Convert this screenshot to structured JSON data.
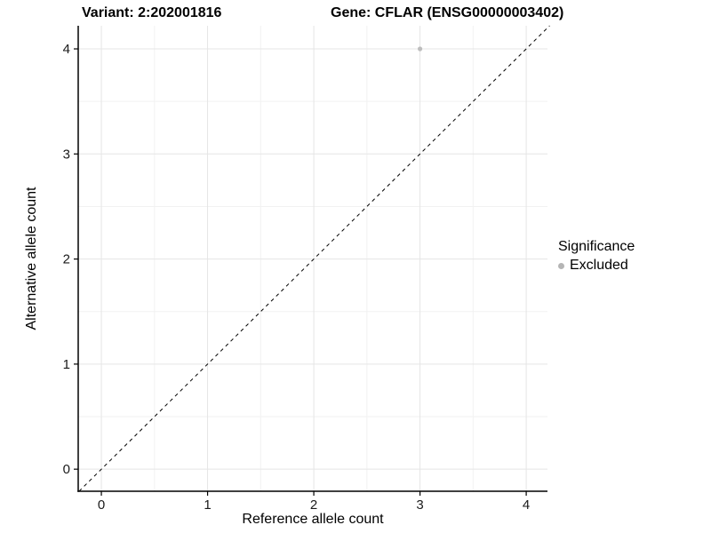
{
  "titles": {
    "variant": "Variant: 2:202001816",
    "gene": "Gene: CFLAR (ENSG00000003402)"
  },
  "chart_data": {
    "type": "scatter",
    "title": "Variant: 2:202001816   Gene: CFLAR (ENSG00000003402)",
    "xlabel": "Reference allele count",
    "ylabel": "Alternative allele count",
    "xlim": [
      -0.218,
      4.2
    ],
    "ylim": [
      -0.21,
      4.22
    ],
    "x_ticks": [
      0,
      1,
      2,
      3,
      4
    ],
    "y_ticks": [
      0,
      1,
      2,
      3,
      4
    ],
    "x_minor": [
      0.5,
      1.5,
      2.5,
      3.5
    ],
    "y_minor": [
      0.5,
      1.5,
      2.5,
      3.5
    ],
    "grid": true,
    "points": [
      {
        "x": 3,
        "y": 4,
        "series": "Excluded"
      }
    ],
    "identity_line": {
      "style": "dashed",
      "slope": 1,
      "intercept": 0
    },
    "legend": {
      "title": "Significance",
      "position": "right",
      "items": [
        {
          "label": "Excluded",
          "color": "#b5b5b5"
        }
      ]
    },
    "colors": {
      "point_excluded": "#bdbdbd",
      "grid_major": "#e5e5e5",
      "grid_minor": "#f2f2f2",
      "axis_line": "#000000",
      "tick_text": "#1a1a1a",
      "identity_line": "#000000"
    }
  }
}
